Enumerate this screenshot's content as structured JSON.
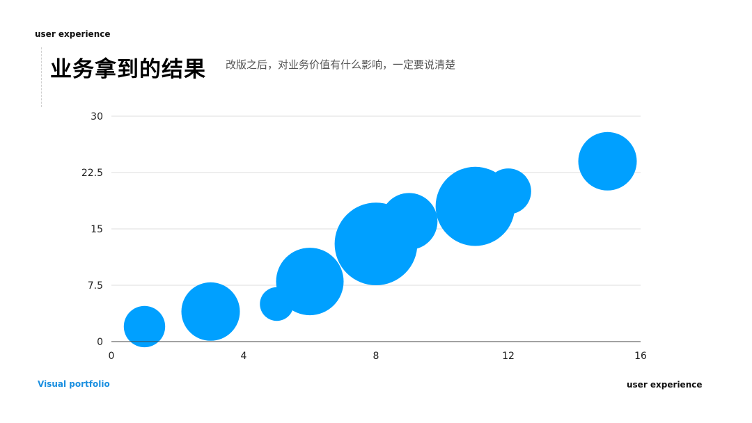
{
  "header": {
    "tag": "user experience",
    "title": "业务拿到的结果",
    "subtitle": "改版之后，对业务价值有什么影响，一定要说清楚"
  },
  "footer": {
    "left": "Visual portfolio",
    "right": "user experience"
  },
  "colors": {
    "bubble": "#00a0ff",
    "grid": "#dddddd",
    "axis": "#444444",
    "footer_accent": "#1a8fe0"
  },
  "chart_data": {
    "type": "scatter",
    "variant": "bubble",
    "xlim": [
      0,
      16
    ],
    "ylim": [
      0,
      30
    ],
    "x_ticks": [
      0,
      4,
      8,
      12,
      16
    ],
    "y_ticks": [
      0,
      7.5,
      15,
      22.5,
      30
    ],
    "x_tick_labels": [
      "0",
      "4",
      "8",
      "12",
      "16"
    ],
    "y_tick_labels": [
      "0",
      "7.5",
      "15",
      "22.5",
      "30"
    ],
    "grid": "horizontal",
    "points": [
      {
        "x": 1,
        "y": 2,
        "size": 4.5
      },
      {
        "x": 3,
        "y": 4,
        "size": 9
      },
      {
        "x": 5,
        "y": 5,
        "size": 3
      },
      {
        "x": 6,
        "y": 8,
        "size": 12
      },
      {
        "x": 8,
        "y": 13,
        "size": 18
      },
      {
        "x": 9,
        "y": 16,
        "size": 8.5
      },
      {
        "x": 11,
        "y": 18,
        "size": 16.5
      },
      {
        "x": 12,
        "y": 20,
        "size": 5.5
      },
      {
        "x": 15,
        "y": 24,
        "size": 9
      }
    ]
  }
}
